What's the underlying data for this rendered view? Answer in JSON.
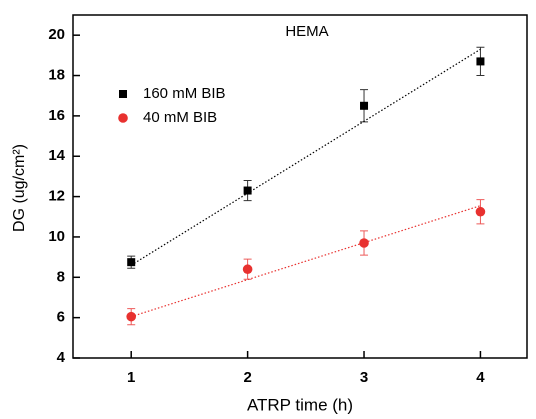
{
  "chart_data": {
    "type": "scatter",
    "title": "HEMA",
    "xlabel": "ATRP time (h)",
    "ylabel": "DG (ug/cm²)",
    "xlim": [
      0.5,
      4.4
    ],
    "ylim": [
      4,
      21
    ],
    "xticks": [
      1,
      2,
      3,
      4
    ],
    "yticks": [
      4,
      6,
      8,
      10,
      12,
      14,
      16,
      18,
      20
    ],
    "legend": "upper left",
    "series": [
      {
        "name": "160 mM BIB",
        "color": "#000000",
        "marker": "square",
        "x": [
          1,
          2,
          3,
          4
        ],
        "values": [
          8.75,
          12.3,
          16.5,
          18.7
        ],
        "errors": [
          0.3,
          0.5,
          0.8,
          0.7
        ],
        "fit": {
          "x": [
            1,
            4
          ],
          "values": [
            8.6,
            19.3
          ]
        }
      },
      {
        "name": "40 mM BIB",
        "color": "#e8312f",
        "marker": "circle",
        "x": [
          1,
          2,
          3,
          4
        ],
        "values": [
          6.05,
          8.4,
          9.7,
          11.25
        ],
        "errors": [
          0.4,
          0.5,
          0.6,
          0.6
        ],
        "fit": {
          "x": [
            1,
            4
          ],
          "values": [
            6.05,
            11.55
          ]
        }
      }
    ]
  }
}
